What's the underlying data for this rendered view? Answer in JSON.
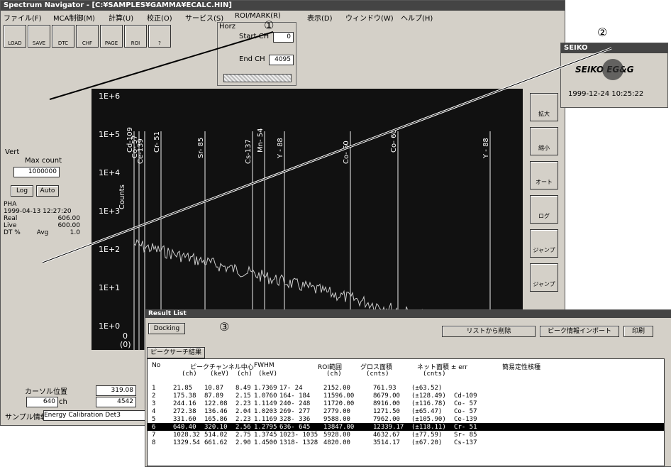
{
  "main_window": {
    "title": "Spectrum Navigator - [C:¥SAMPLES¥GAMMA¥ECALC.HIN]",
    "menu": [
      "ファイル(F)",
      "MCA制御(M)",
      "計算(U)",
      "校正(O)",
      "サービス(S)",
      "ROI/MARK(R)",
      "表示(D)",
      "ウィンドウ(W)",
      "ヘルプ(H)"
    ],
    "toolbar": [
      "LOAD",
      "SAVE",
      "DTC",
      "CHF",
      "PAGE",
      "ROI",
      "?"
    ],
    "horz": {
      "label": "Horz",
      "start_label": "Start CH",
      "start": "0",
      "end_label": "End CH",
      "end": "4095"
    },
    "vert": {
      "label": "Vert",
      "max_label": "Max count",
      "max": "1000000",
      "log": "Log",
      "auto": "Auto"
    },
    "pha": {
      "label": "PHA",
      "date": "1999-04-13 12:27:20",
      "real_label": "Real",
      "real": "606.00",
      "live_label": "Live",
      "live": "600.00",
      "dt_label": "DT %",
      "dt_mode": "Avg",
      "dt": "1.0"
    },
    "spectrum": {
      "y_labels": [
        "1E+6",
        "1E+5",
        "1E+4",
        "1E+3",
        "1E+2",
        "1E+1",
        "1E+0"
      ],
      "axis_label": "Counts",
      "zero": "0",
      "zero_ch": "(0)",
      "peaks": [
        "Cd-109",
        "Co- 57",
        "Ce-139",
        "Cr- 51",
        "Sr- 85",
        "Cs-137",
        "Mn- 54",
        "Y - 88",
        "Co- 60",
        "Co- 60",
        "Y - 88"
      ]
    },
    "side_buttons": [
      "拡大",
      "縮小",
      "オート",
      "ログ",
      "ジャンプ",
      "ジャンプ"
    ],
    "status": {
      "cursor_label": "カーソル位置",
      "cursor": "640",
      "ch": "ch",
      "energy": "319.08",
      "count": "4542",
      "sample_label": "サンプル情報",
      "sample": "Energy Calibration Det3"
    }
  },
  "callouts": [
    "①",
    "②",
    "③"
  ],
  "logo_window": {
    "title": "SEIKO",
    "logo": "SEIKO EG&G",
    "timestamp": "1999-12-24 10:25:22"
  },
  "result_list": {
    "title": "Result List",
    "docking": "Docking",
    "buttons": [
      "リストから削除",
      "ピーク情報インポート",
      "印刷"
    ],
    "tab": "ピークサーチ結果",
    "headers": [
      "No",
      "ピークチャンネル中心",
      "FWHM",
      "ROI範囲",
      "グロス面積",
      "ネット面積 ± err",
      "簡易定性核種"
    ],
    "units": [
      "(ch)",
      "(keV)",
      "(ch)",
      "(keV)",
      "(ch)",
      "(cnts)",
      "(cnts)"
    ],
    "rows": [
      [
        "1",
        "21.85",
        "10.87",
        "8.49",
        "1.7369",
        "17- 24",
        "2152.00",
        "761.93",
        "(±63.52)"
      ],
      [
        "2",
        "175.38",
        "87.89",
        "2.15",
        "1.0760",
        "164- 184",
        "11596.00",
        "8679.00",
        "(±128.49)",
        "Cd-109"
      ],
      [
        "3",
        "244.16",
        "122.08",
        "2.23",
        "1.1149",
        "240- 248",
        "11720.00",
        "8916.00",
        "(±116.78)",
        "Co- 57"
      ],
      [
        "4",
        "272.38",
        "136.46",
        "2.04",
        "1.0203",
        "269- 277",
        "2779.00",
        "1271.50",
        "(±65.47)",
        "Co- 57"
      ],
      [
        "5",
        "331.60",
        "165.86",
        "2.23",
        "1.1169",
        "328- 336",
        "9588.00",
        "7962.00",
        "(±105.90)",
        "Ce-139"
      ],
      [
        "6",
        "640.40",
        "320.10",
        "2.56",
        "1.2795",
        "636- 645",
        "13847.00",
        "12339.17",
        "(±118.11)",
        "Cr- 51"
      ],
      [
        "7",
        "1028.32",
        "514.02",
        "2.75",
        "1.3745",
        "1023- 1035",
        "5928.00",
        "4632.67",
        "(±77.59)",
        "Sr- 85"
      ],
      [
        "8",
        "1329.54",
        "661.62",
        "2.90",
        "1.4500",
        "1318- 1328",
        "4820.00",
        "3514.17",
        "(±67.20)",
        "Cs-137"
      ]
    ]
  }
}
